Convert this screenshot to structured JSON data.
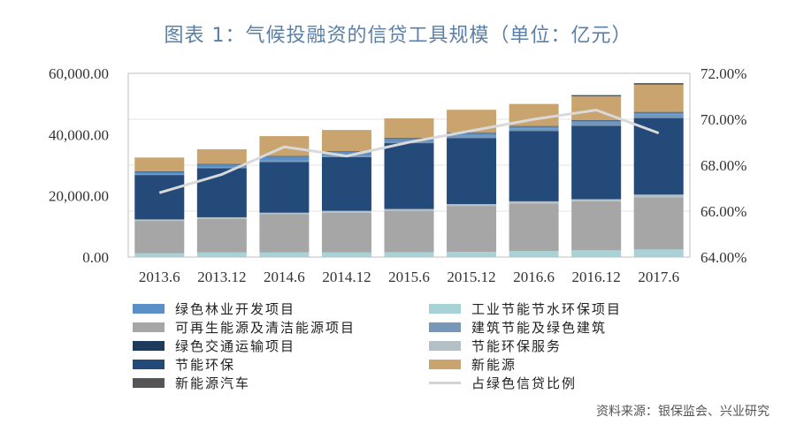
{
  "title": "图表 1：气候投融资的信贷工具规模（单位：亿元）",
  "source": "资料来源：银保监会、兴业研究",
  "chart_data": {
    "type": "bar",
    "stacked": true,
    "categories": [
      "2013.6",
      "2013.12",
      "2014.6",
      "2014.12",
      "2015.6",
      "2015.12",
      "2016.6",
      "2016.12",
      "2017.6"
    ],
    "left_axis": {
      "min": 0,
      "max": 60000,
      "ticks": [
        "0.00",
        "20,000.00",
        "40,000.00",
        "60,000.00"
      ]
    },
    "right_axis": {
      "min": 64,
      "max": 72,
      "ticks": [
        "64.00%",
        "66.00%",
        "68.00%",
        "70.00%",
        "72.00%"
      ]
    },
    "series": [
      {
        "name": "工业节能节水环保项目",
        "color": "#a8d3d6",
        "values": [
          1300,
          1500,
          1500,
          1500,
          1600,
          1700,
          2000,
          2200,
          2500
        ]
      },
      {
        "name": "可再生能源及清洁能源项目",
        "color": "#a6a6a6",
        "values": [
          10500,
          11000,
          12500,
          13000,
          13500,
          15000,
          15500,
          16000,
          17000
        ]
      },
      {
        "name": "节能环保服务",
        "color": "#b4bfc6",
        "values": [
          500,
          500,
          500,
          600,
          600,
          600,
          700,
          700,
          900
        ]
      },
      {
        "name": "节能环保",
        "color": "#234a78",
        "values": [
          14500,
          16000,
          16500,
          17500,
          21500,
          21500,
          23000,
          24000,
          25000
        ]
      },
      {
        "name": "建筑节能及绿色建筑",
        "color": "#7797b8",
        "values": [
          300,
          400,
          500,
          500,
          600,
          800,
          900,
          1100,
          1300
        ]
      },
      {
        "name": "绿色林业开发项目",
        "color": "#5b8fc7",
        "values": [
          700,
          800,
          1300,
          1200,
          800,
          800,
          500,
          500,
          500
        ]
      },
      {
        "name": "绿色交通运输项目",
        "color": "#1e3b5c",
        "values": [
          200,
          200,
          200,
          200,
          200,
          200,
          200,
          200,
          200
        ]
      },
      {
        "name": "新能源",
        "color": "#c9a46e",
        "values": [
          4500,
          4800,
          6500,
          7000,
          6500,
          7500,
          7200,
          7800,
          8900
        ]
      },
      {
        "name": "新能源汽车",
        "color": "#555555",
        "values": [
          0,
          0,
          0,
          0,
          0,
          0,
          0,
          400,
          500
        ]
      }
    ],
    "line": {
      "name": "占绿色信贷比例",
      "color": "#d9d9d9",
      "values": [
        66.8,
        67.6,
        68.8,
        68.4,
        69.0,
        69.5,
        70.0,
        70.4,
        69.4
      ]
    }
  },
  "legend": [
    {
      "label": "绿色林业开发项目",
      "color": "#5b8fc7",
      "kind": "box"
    },
    {
      "label": "工业节能节水环保项目",
      "color": "#a8d3d6",
      "kind": "box"
    },
    {
      "label": "可再生能源及清洁能源项目",
      "color": "#a6a6a6",
      "kind": "box"
    },
    {
      "label": "建筑节能及绿色建筑",
      "color": "#7797b8",
      "kind": "box"
    },
    {
      "label": "绿色交通运输项目",
      "color": "#1e3b5c",
      "kind": "box"
    },
    {
      "label": "节能环保服务",
      "color": "#b4bfc6",
      "kind": "box"
    },
    {
      "label": "节能环保",
      "color": "#234a78",
      "kind": "box"
    },
    {
      "label": "新能源",
      "color": "#c9a46e",
      "kind": "box"
    },
    {
      "label": "新能源汽车",
      "color": "#555555",
      "kind": "box"
    },
    {
      "label": "占绿色信贷比例",
      "color": "#d4d4d4",
      "kind": "line"
    }
  ]
}
